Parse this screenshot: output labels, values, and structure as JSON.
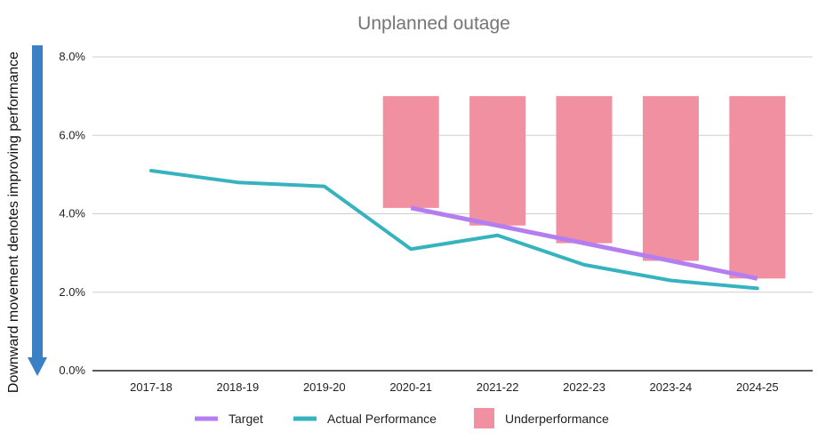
{
  "chart_data": {
    "type": "line",
    "title": "Unplanned outage",
    "side_annotation": "Downward movement denotes improving performance",
    "categories": [
      "2017-18",
      "2018-19",
      "2019-20",
      "2020-21",
      "2021-22",
      "2022-23",
      "2023-24",
      "2024-25"
    ],
    "y_ticks": [
      "0.0%",
      "2.0%",
      "4.0%",
      "6.0%",
      "8.0%"
    ],
    "ylim": [
      0,
      8
    ],
    "grid": true,
    "legend_position": "bottom",
    "series": [
      {
        "name": "Target",
        "type": "line",
        "color": "#b57ef0",
        "values": [
          null,
          null,
          null,
          4.15,
          3.7,
          3.25,
          2.8,
          2.35
        ]
      },
      {
        "name": "Actual Performance",
        "type": "line",
        "color": "#36b3bf",
        "values": [
          5.1,
          4.8,
          4.7,
          3.1,
          3.45,
          2.7,
          2.3,
          2.1
        ]
      },
      {
        "name": "Underperformance",
        "type": "band",
        "color": "#f090a0",
        "upper": [
          null,
          null,
          null,
          7.0,
          7.0,
          7.0,
          7.0,
          7.0
        ],
        "lower": [
          null,
          null,
          null,
          4.15,
          3.7,
          3.25,
          2.8,
          2.35
        ]
      }
    ],
    "arrow_color": "#3b7fc4"
  }
}
